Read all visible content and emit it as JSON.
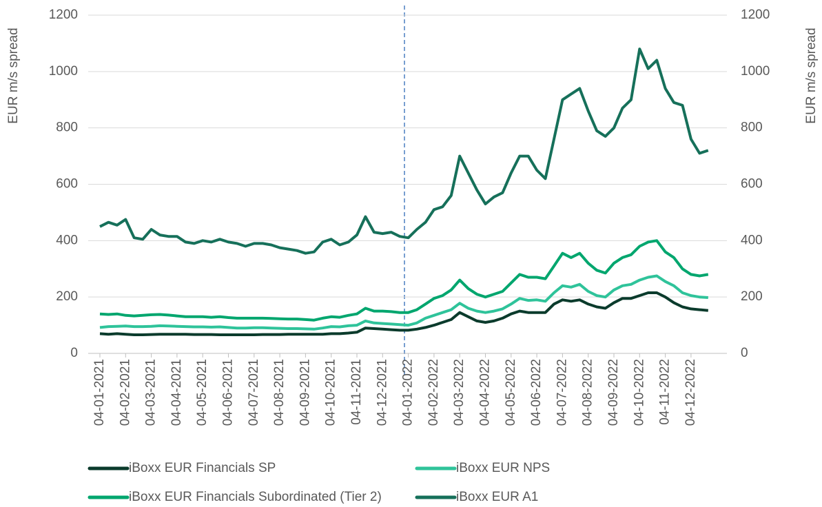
{
  "chart_data": {
    "type": "line",
    "y_label": "EUR m/s spread",
    "y2_label": "EUR m/s spread",
    "categories": [
      "04-01-2021",
      null,
      null,
      "04-02-2021",
      null,
      null,
      "04-03-2021",
      null,
      null,
      "04-04-2021",
      null,
      null,
      "04-05-2021",
      null,
      null,
      "04-06-2021",
      null,
      null,
      "04-07-2021",
      null,
      null,
      "04-08-2021",
      null,
      null,
      "04-09-2021",
      null,
      null,
      "04-10-2021",
      null,
      null,
      "04-11-2021",
      null,
      null,
      "04-12-2021",
      null,
      null,
      "04-01-2022",
      null,
      null,
      "04-02-2022",
      null,
      null,
      "04-03-2022",
      null,
      null,
      "04-04-2022",
      null,
      null,
      "04-05-2022",
      null,
      null,
      "04-06-2022",
      null,
      null,
      "04-07-2022",
      null,
      null,
      "04-08-2022",
      null,
      null,
      "04-09-2022",
      null,
      null,
      "04-10-2022",
      null,
      null,
      "04-11-2022",
      null,
      null,
      "04-12-2022",
      null,
      null
    ],
    "series": [
      {
        "name": "iBoxx EUR Financials SP",
        "color": "#0b3b2c",
        "values": [
          70,
          68,
          70,
          68,
          66,
          66,
          67,
          68,
          68,
          68,
          68,
          67,
          67,
          67,
          66,
          66,
          66,
          66,
          66,
          67,
          67,
          67,
          68,
          68,
          68,
          68,
          68,
          70,
          70,
          72,
          75,
          90,
          88,
          86,
          84,
          82,
          82,
          86,
          92,
          100,
          110,
          120,
          145,
          130,
          115,
          110,
          115,
          125,
          140,
          150,
          145,
          145,
          145,
          175,
          190,
          185,
          190,
          175,
          165,
          160,
          180,
          195,
          195,
          205,
          215,
          215,
          200,
          180,
          165,
          158,
          155,
          152
        ]
      },
      {
        "name": "iBoxx EUR NPS",
        "color": "#2fc39a",
        "values": [
          92,
          95,
          96,
          97,
          95,
          95,
          96,
          98,
          97,
          96,
          95,
          94,
          94,
          93,
          94,
          92,
          90,
          90,
          91,
          91,
          90,
          89,
          88,
          88,
          87,
          86,
          90,
          95,
          94,
          98,
          100,
          115,
          108,
          106,
          104,
          102,
          100,
          108,
          125,
          135,
          145,
          155,
          178,
          160,
          150,
          145,
          150,
          158,
          175,
          195,
          188,
          190,
          185,
          215,
          240,
          235,
          245,
          220,
          205,
          200,
          225,
          240,
          245,
          260,
          270,
          275,
          255,
          240,
          215,
          205,
          200,
          198
        ]
      },
      {
        "name": "iBoxx EUR Financials Subordinated (Tier 2)",
        "color": "#00a66e",
        "values": [
          140,
          138,
          140,
          135,
          133,
          135,
          137,
          138,
          136,
          133,
          130,
          130,
          130,
          128,
          130,
          127,
          125,
          125,
          125,
          125,
          124,
          123,
          122,
          122,
          120,
          118,
          125,
          130,
          128,
          135,
          140,
          160,
          150,
          150,
          148,
          145,
          145,
          155,
          175,
          195,
          205,
          225,
          260,
          230,
          210,
          200,
          210,
          220,
          250,
          280,
          270,
          270,
          265,
          310,
          355,
          340,
          355,
          320,
          295,
          285,
          320,
          340,
          350,
          380,
          395,
          400,
          360,
          340,
          300,
          280,
          275,
          280
        ]
      },
      {
        "name": "iBoxx EUR A1",
        "color": "#16705a",
        "values": [
          450,
          465,
          455,
          475,
          410,
          405,
          440,
          420,
          415,
          415,
          395,
          390,
          400,
          395,
          405,
          395,
          390,
          380,
          390,
          390,
          385,
          375,
          370,
          365,
          355,
          360,
          395,
          405,
          385,
          395,
          420,
          485,
          430,
          425,
          430,
          415,
          410,
          440,
          465,
          510,
          520,
          560,
          700,
          640,
          580,
          530,
          555,
          570,
          640,
          700,
          700,
          650,
          620,
          760,
          900,
          920,
          940,
          860,
          790,
          770,
          800,
          870,
          900,
          1080,
          1010,
          1040,
          940,
          890,
          880,
          760,
          710,
          720
        ]
      }
    ],
    "ylim": [
      0,
      1200
    ],
    "yticks": [
      0,
      200,
      400,
      600,
      800,
      1000,
      1200
    ],
    "y2lim": [
      0,
      1200
    ],
    "y2ticks": [
      0,
      200,
      400,
      600,
      800,
      1000,
      1200
    ],
    "grid": true
  }
}
